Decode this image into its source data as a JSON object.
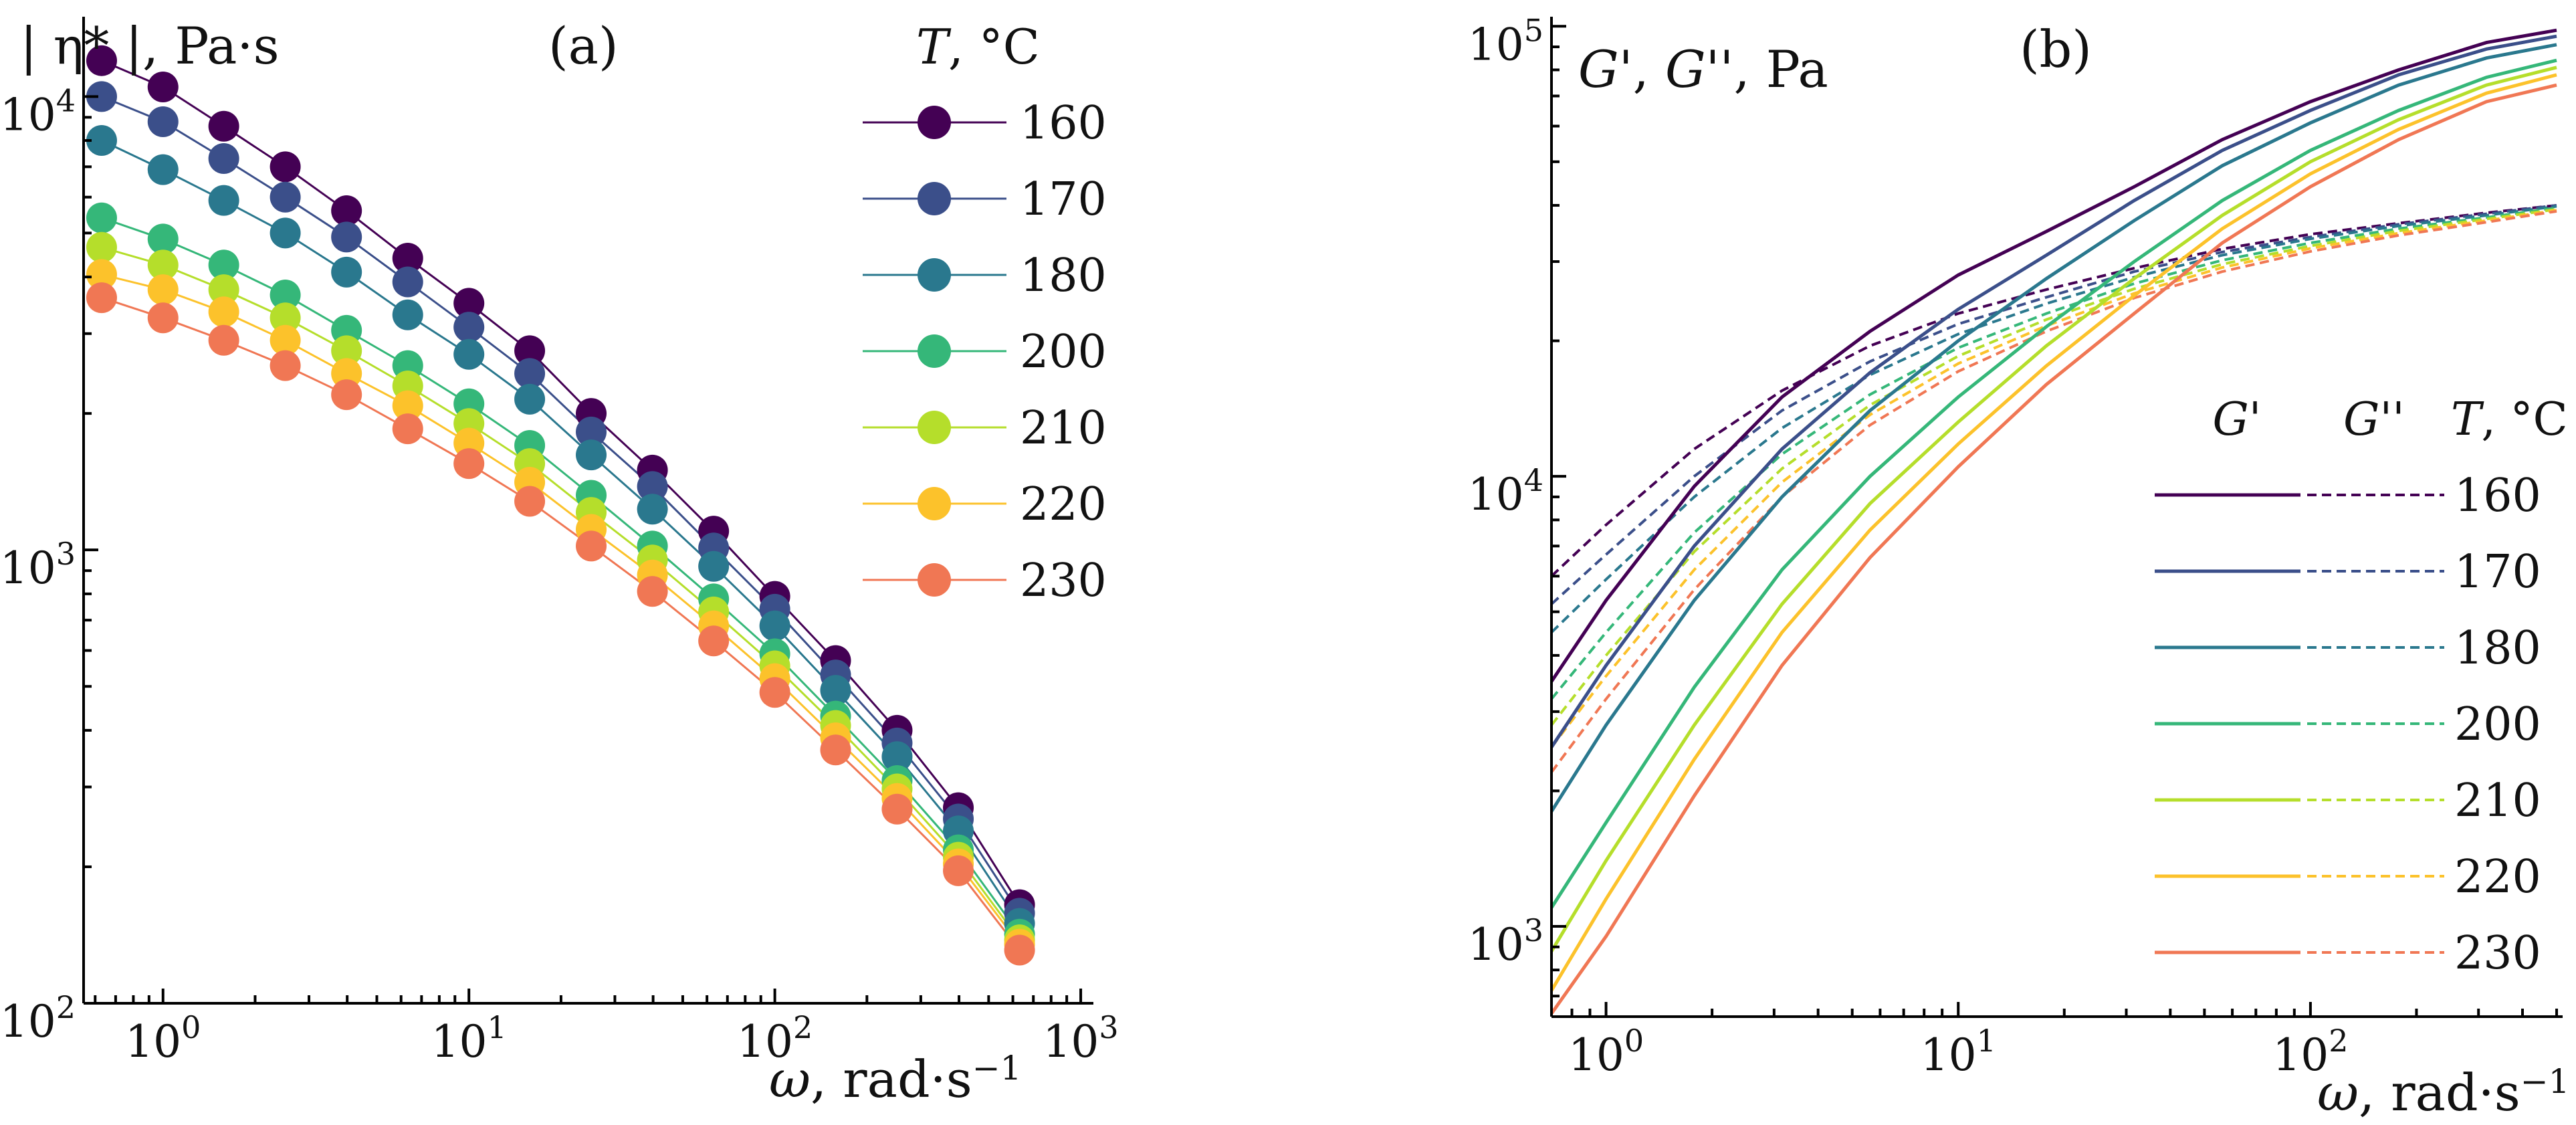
{
  "chart_data": [
    {
      "type": "line",
      "panel": "(a)",
      "ylabel": "| η* |, Pa·s",
      "xlabel_symbol": "ω",
      "xlabel": ", rad·s",
      "xlabel_exp": "−1",
      "xscale": "log",
      "yscale": "log",
      "xlim": [
        0.55,
        1100
      ],
      "ylim": [
        100,
        15000
      ],
      "xticks": [
        {
          "value": 1,
          "base": "10",
          "exp": "0"
        },
        {
          "value": 10,
          "base": "10",
          "exp": "1"
        },
        {
          "value": 100,
          "base": "10",
          "exp": "2"
        },
        {
          "value": 1000,
          "base": "10",
          "exp": "3"
        }
      ],
      "yticks": [
        {
          "value": 100,
          "base": "10",
          "exp": "2"
        },
        {
          "value": 1000,
          "base": "10",
          "exp": "3"
        },
        {
          "value": 10000,
          "base": "10",
          "exp": "4"
        }
      ],
      "legend_title_symbol": "T",
      "legend_title": ", °C",
      "legend_position": "top-right",
      "x": [
        0.63,
        1.0,
        1.58,
        2.51,
        3.98,
        6.31,
        10.0,
        15.8,
        25.1,
        39.8,
        63.1,
        100,
        158,
        251,
        398,
        631
      ],
      "series": [
        {
          "name": "160",
          "color": "#440154",
          "values": [
            12000,
            10500,
            8600,
            7000,
            5600,
            4400,
            3500,
            2750,
            2000,
            1500,
            1100,
            790,
            570,
            400,
            270,
            165
          ]
        },
        {
          "name": "170",
          "color": "#3b4f8a",
          "values": [
            10000,
            8800,
            7300,
            6000,
            4900,
            3900,
            3100,
            2450,
            1820,
            1380,
            1010,
            740,
            530,
            375,
            255,
            158
          ]
        },
        {
          "name": "180",
          "color": "#2a788e",
          "values": [
            8000,
            6900,
            5900,
            5000,
            4100,
            3300,
            2700,
            2150,
            1620,
            1230,
            920,
            680,
            490,
            350,
            240,
            150
          ]
        },
        {
          "name": "200",
          "color": "#35b779",
          "values": [
            5400,
            4850,
            4250,
            3650,
            3050,
            2550,
            2100,
            1700,
            1320,
            1020,
            780,
            590,
            430,
            310,
            218,
            142
          ]
        },
        {
          "name": "210",
          "color": "#b5de2b",
          "values": [
            4650,
            4250,
            3750,
            3250,
            2750,
            2300,
            1900,
            1550,
            1210,
            950,
            730,
            555,
            410,
            297,
            210,
            138
          ]
        },
        {
          "name": "220",
          "color": "#fcc22b",
          "values": [
            4050,
            3750,
            3350,
            2900,
            2450,
            2080,
            1720,
            1410,
            1110,
            880,
            680,
            520,
            385,
            283,
            203,
            135
          ]
        },
        {
          "name": "230",
          "color": "#f07754",
          "values": [
            3600,
            3250,
            2900,
            2550,
            2200,
            1850,
            1550,
            1280,
            1020,
            810,
            630,
            485,
            362,
            268,
            196,
            131
          ]
        }
      ]
    },
    {
      "type": "line",
      "panel": "(b)",
      "ylabel_g1": "G",
      "ylabel_sep": "', ",
      "ylabel_g2": "G",
      "ylabel_rest": "'', Pa",
      "xlabel_symbol": "ω",
      "xlabel": ", rad·s",
      "xlabel_exp": "−1",
      "xscale": "log",
      "yscale": "log",
      "xlim": [
        0.7,
        520
      ],
      "ylim": [
        630,
        105000
      ],
      "xticks": [
        {
          "value": 1,
          "base": "10",
          "exp": "0"
        },
        {
          "value": 10,
          "base": "10",
          "exp": "1"
        },
        {
          "value": 100,
          "base": "10",
          "exp": "2"
        }
      ],
      "yticks": [
        {
          "value": 1000,
          "base": "10",
          "exp": "3"
        },
        {
          "value": 10000,
          "base": "10",
          "exp": "4"
        },
        {
          "value": 100000,
          "base": "10",
          "exp": "5"
        }
      ],
      "legend_header_g1": "G'",
      "legend_header_g2": "G''",
      "legend_title_symbol": "T",
      "legend_title": ", °C",
      "legend_position": "bottom-right",
      "x": [
        0.7,
        1.0,
        1.78,
        3.16,
        5.62,
        10.0,
        17.8,
        31.6,
        56.2,
        100,
        178,
        316,
        500
      ],
      "series": [
        {
          "name": "160",
          "color": "#440154",
          "G_prime": [
            3500,
            5300,
            9500,
            15000,
            21000,
            28000,
            35000,
            44000,
            56000,
            68000,
            80000,
            92000,
            98000
          ],
          "G_double_prime": [
            6000,
            7800,
            11500,
            15500,
            19500,
            23000,
            26000,
            29000,
            32000,
            34500,
            36500,
            38500,
            40000
          ]
        },
        {
          "name": "170",
          "color": "#3b4f8a",
          "G_prime": [
            2500,
            3800,
            7000,
            11500,
            17000,
            23500,
            31000,
            41000,
            53000,
            65000,
            78000,
            89000,
            95000
          ],
          "G_double_prime": [
            5200,
            6700,
            10000,
            14000,
            18000,
            21800,
            25000,
            28500,
            31500,
            34000,
            36300,
            38300,
            40000
          ]
        },
        {
          "name": "180",
          "color": "#2a788e",
          "G_prime": [
            1800,
            2800,
            5300,
            9000,
            14000,
            20000,
            27500,
            37000,
            49000,
            61000,
            74000,
            85000,
            91000
          ],
          "G_double_prime": [
            4500,
            5900,
            9000,
            12800,
            16800,
            20700,
            24200,
            27700,
            31000,
            33700,
            36000,
            38000,
            39800
          ]
        },
        {
          "name": "200",
          "color": "#35b779",
          "G_prime": [
            1100,
            1700,
            3400,
            6200,
            10000,
            15000,
            21500,
            30000,
            41000,
            53000,
            65000,
            77000,
            84000
          ]
        },
        {
          "name": "210",
          "color": "#b5de2b",
          "G_prime": [
            880,
            1400,
            2800,
            5200,
            8700,
            13200,
            19500,
            27500,
            38000,
            50000,
            62000,
            74000,
            81000
          ]
        },
        {
          "name": "220",
          "color": "#fcc22b",
          "G_prime": [
            720,
            1150,
            2350,
            4500,
            7600,
            11800,
            17600,
            25200,
            35500,
            47000,
            59000,
            71000,
            78000
          ]
        },
        {
          "name": "230",
          "color": "#f07754",
          "G_prime": [
            640,
            950,
            1950,
            3800,
            6600,
            10500,
            16000,
            23000,
            33000,
            44000,
            56000,
            68000,
            74000
          ]
        }
      ],
      "g2_lower": {
        "200": [
          3200,
          4500,
          7500,
          11200,
          15200,
          19300,
          23000,
          26800,
          30200,
          33000,
          35500,
          37600,
          39500
        ],
        "210": [
          2800,
          4000,
          6800,
          10400,
          14400,
          18500,
          22300,
          26100,
          29600,
          32500,
          35100,
          37300,
          39200
        ],
        "220": [
          2500,
          3600,
          6200,
          9700,
          13700,
          17800,
          21600,
          25500,
          29100,
          32100,
          34700,
          37000,
          39000
        ],
        "230": [
          2200,
          3200,
          5600,
          9000,
          13000,
          17100,
          21000,
          24900,
          28500,
          31600,
          34300,
          36700,
          38800
        ]
      }
    }
  ]
}
